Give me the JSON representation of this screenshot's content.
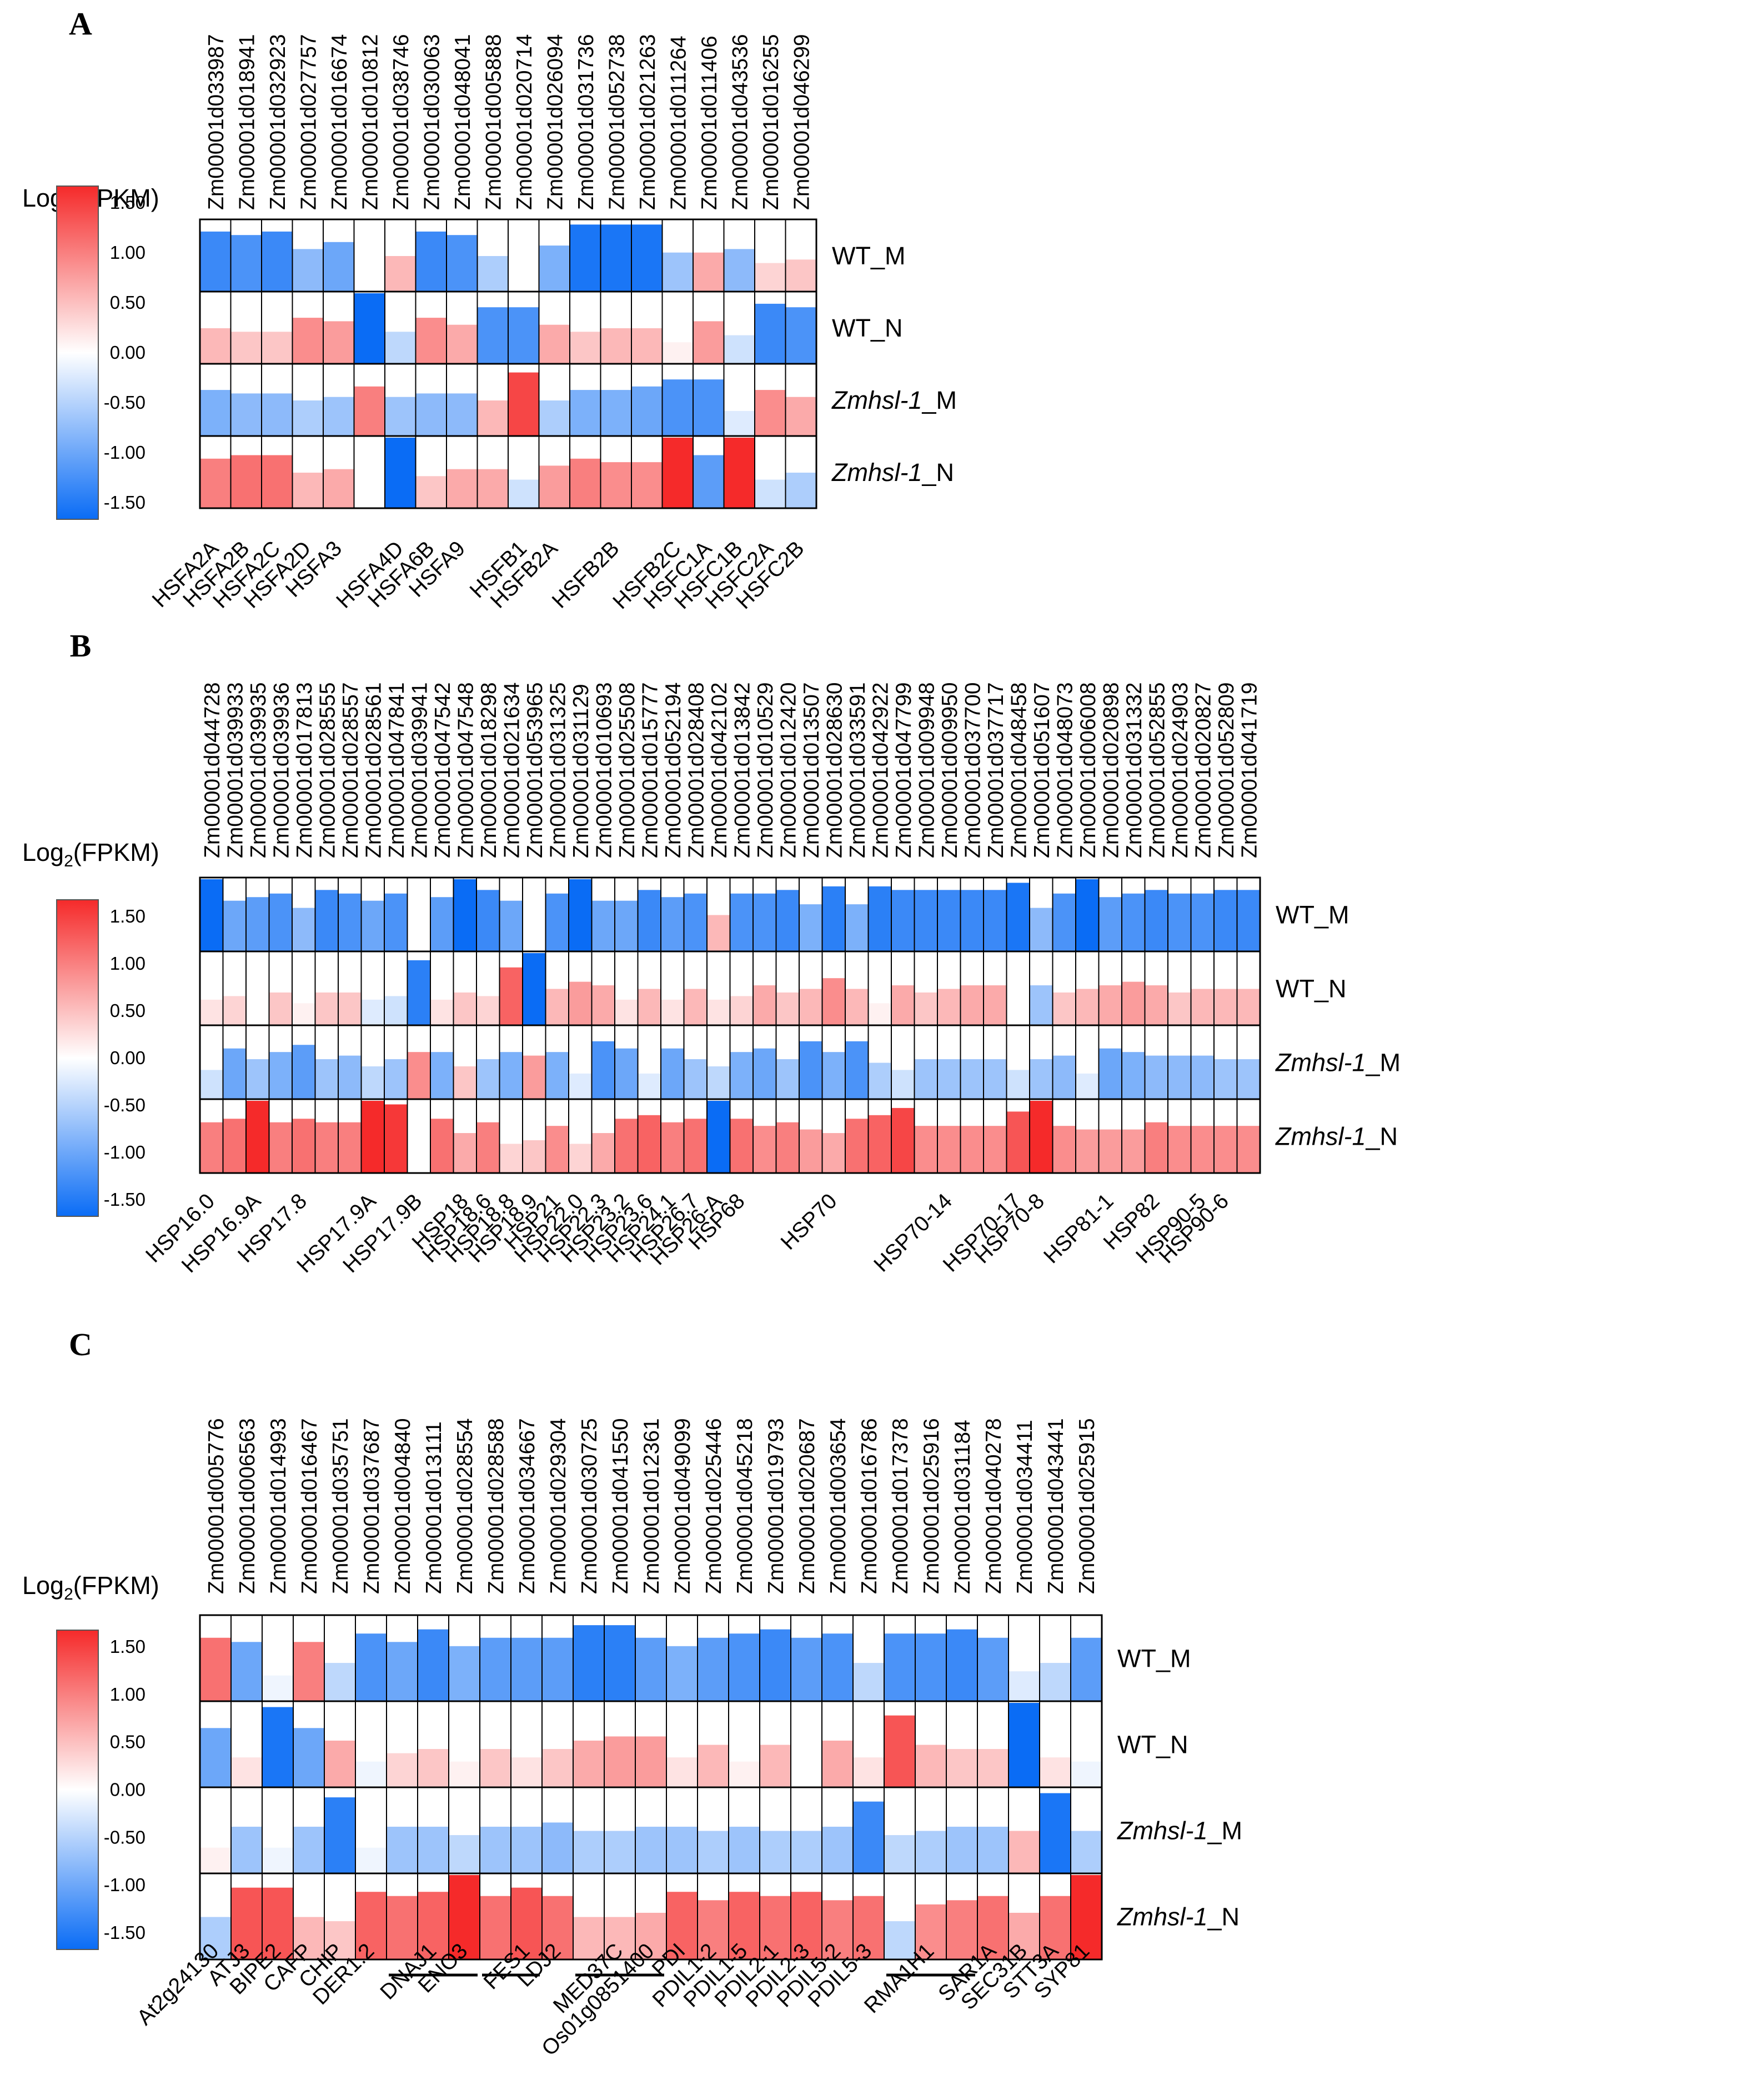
{
  "colors": {
    "low": "#0a6cf5",
    "mid": "#ffffff",
    "high": "#f52a2a"
  },
  "legend": {
    "title": "Log2(FPKM)",
    "title_main": "Log",
    "title_sub": "2",
    "title_rest": "(FPKM)",
    "ticks": [
      "1.50",
      "1.00",
      "0.50",
      "0.00",
      "-0.50",
      "-1.00",
      "-1.50"
    ],
    "min": -1.5,
    "max": 1.5
  },
  "rows": [
    {
      "key": "WT_M",
      "label": "WT_M",
      "prefix": "",
      "italic": "",
      "suffix": ""
    },
    {
      "key": "WT_N",
      "label": "WT_N",
      "prefix": "",
      "italic": "",
      "suffix": ""
    },
    {
      "key": "Zmhsl-1_M",
      "label": "Zmhsl-1_M",
      "prefix": "",
      "italic": "Zmhsl-1",
      "suffix": "_M"
    },
    {
      "key": "Zmhsl-1_N",
      "label": "Zmhsl-1_N",
      "prefix": "",
      "italic": "Zmhsl-1",
      "suffix": "_N"
    }
  ],
  "chart_data": [
    {
      "type": "heatmap",
      "panel": "A",
      "title": "A",
      "value_label": "Log2(FPKM)",
      "row_labels": [
        "WT_M",
        "WT_N",
        "Zmhsl-1_M",
        "Zmhsl-1_N"
      ],
      "gene_ids": [
        "Zm00001d033987",
        "Zm00001d018941",
        "Zm00001d032923",
        "Zm00001d027757",
        "Zm00001d016674",
        "Zm00001d010812",
        "Zm00001d038746",
        "Zm00001d030063",
        "Zm00001d048041",
        "Zm00001d005888",
        "Zm00001d020714",
        "Zm00001d026094",
        "Zm00001d031736",
        "Zm00001d052738",
        "Zm00001d021263",
        "Zm00001d011264",
        "Zm00001d011406",
        "Zm00001d043536",
        "Zm00001d016255",
        "Zm00001d046299"
      ],
      "gene_labels": [
        "HSFA2A",
        "HSFA2B",
        "HSFA2C",
        "HSFA2D",
        "HSFA3",
        "",
        "HSFA4D",
        "HSFA6B",
        "HSFA9",
        "",
        "HSFB1",
        "HSFB2A",
        "",
        "HSFB2B",
        "",
        "HSFB2C",
        "HSFC1A",
        "HSFC1B",
        "HSFC2A",
        "HSFC2B"
      ],
      "gene_groups": [],
      "values": [
        [
          -1.2,
          -1.1,
          -1.2,
          -0.7,
          -0.9,
          0.0,
          0.5,
          -1.2,
          -1.1,
          -0.5,
          0.0,
          -0.8,
          -1.4,
          -1.4,
          -1.4,
          -0.6,
          0.6,
          -0.7,
          0.3,
          0.4
        ],
        [
          0.5,
          0.4,
          0.4,
          0.8,
          0.7,
          -1.5,
          -0.4,
          0.8,
          0.6,
          -1.1,
          -1.1,
          0.6,
          0.4,
          0.5,
          0.5,
          0.1,
          0.7,
          -0.3,
          -1.2,
          -1.1
        ],
        [
          -0.8,
          -0.7,
          -0.7,
          -0.5,
          -0.6,
          0.9,
          -0.6,
          -0.7,
          -0.7,
          0.5,
          1.3,
          -0.5,
          -0.8,
          -0.8,
          -0.9,
          -1.1,
          -1.1,
          -0.2,
          0.8,
          0.6
        ],
        [
          0.9,
          1.0,
          1.0,
          0.5,
          0.6,
          0.0,
          -1.5,
          0.4,
          0.6,
          0.6,
          -0.3,
          0.7,
          0.9,
          0.8,
          0.8,
          1.5,
          -1.0,
          1.6,
          -0.3,
          -0.5
        ]
      ]
    },
    {
      "type": "heatmap",
      "panel": "B",
      "title": "B",
      "value_label": "Log2(FPKM)",
      "row_labels": [
        "WT_M",
        "WT_N",
        "Zmhsl-1_M",
        "Zmhsl-1_N"
      ],
      "gene_ids": [
        "Zm00001d044728",
        "Zm00001d039933",
        "Zm00001d039935",
        "Zm00001d039936",
        "Zm00001d017813",
        "Zm00001d028555",
        "Zm00001d028557",
        "Zm00001d028561",
        "Zm00001d047841",
        "Zm00001d039941",
        "Zm00001d047542",
        "Zm00001d047548",
        "Zm00001d018298",
        "Zm00001d021634",
        "Zm00001d053965",
        "Zm00001d031325",
        "Zm00001d031129",
        "Zm00001d010693",
        "Zm00001d025508",
        "Zm00001d015777",
        "Zm00001d052194",
        "Zm00001d028408",
        "Zm00001d042102",
        "Zm00001d013842",
        "Zm00001d010529",
        "Zm00001d012420",
        "Zm00001d013507",
        "Zm00001d028630",
        "Zm00001d033591",
        "Zm00001d042922",
        "Zm00001d047799",
        "Zm00001d009948",
        "Zm00001d009950",
        "Zm00001d037700",
        "Zm00001d037717",
        "Zm00001d048458",
        "Zm00001d051607",
        "Zm00001d048073",
        "Zm00001d006008",
        "Zm00001d020898",
        "Zm00001d031332",
        "Zm00001d052855",
        "Zm00001d024903",
        "Zm00001d020827",
        "Zm00001d052809",
        "Zm00001d041719"
      ],
      "gene_labels": [
        "HSP16.0",
        "",
        "HSP16.9A",
        "",
        "HSP17.8",
        "",
        "",
        "HSP17.9A",
        "",
        "HSP17.9B",
        "",
        "HSP18",
        "HSP18.6",
        "HSP18.8",
        "HSP18.9",
        "HSP21",
        "HSP22.0",
        "HSP22.3",
        "HSP23.2",
        "HSP23.6",
        "HSP24.1",
        "HSP26.7",
        "HSP26-A",
        "HSP68",
        "",
        "",
        "",
        "HSP70",
        "",
        "",
        "",
        "",
        "HSP70-14",
        "",
        "",
        "HSP70-17",
        "HSP70-8",
        "",
        "",
        "HSP81-1",
        "",
        "HSP82",
        "",
        "HSP90-5",
        "HSP90-6",
        ""
      ],
      "gene_groups": [],
      "values": [
        [
          -1.5,
          -0.9,
          -1.0,
          -1.1,
          -0.7,
          -1.2,
          -1.1,
          -0.9,
          -1.1,
          0.0,
          -1.0,
          -1.7,
          -1.2,
          -0.9,
          0.0,
          -1.1,
          -1.8,
          -0.9,
          -0.9,
          -1.2,
          -1.0,
          -1.1,
          0.5,
          -1.1,
          -1.1,
          -1.2,
          -0.8,
          -1.3,
          -0.8,
          -1.3,
          -1.2,
          -1.2,
          -1.2,
          -1.2,
          -1.2,
          -1.4,
          -0.7,
          -1.1,
          -1.6,
          -1.0,
          -1.1,
          -1.2,
          -1.1,
          -1.1,
          -1.2,
          -1.2
        ],
        [
          0.2,
          0.3,
          0.0,
          0.4,
          0.1,
          0.4,
          0.4,
          -0.2,
          -0.3,
          -1.3,
          0.2,
          0.4,
          0.3,
          1.1,
          -1.5,
          0.5,
          0.7,
          0.6,
          0.2,
          0.5,
          0.2,
          0.5,
          0.2,
          0.3,
          0.6,
          0.4,
          0.5,
          0.8,
          0.5,
          0.1,
          0.6,
          0.4,
          0.5,
          0.6,
          0.6,
          0.0,
          -0.6,
          0.4,
          0.5,
          0.6,
          0.7,
          0.6,
          0.4,
          0.5,
          0.5,
          0.5
        ],
        [
          -0.3,
          -0.9,
          -0.6,
          -0.8,
          -1.0,
          -0.6,
          -0.7,
          -0.4,
          -0.6,
          0.8,
          -0.8,
          0.4,
          -0.6,
          -0.8,
          0.7,
          -0.8,
          -0.2,
          -1.1,
          -0.9,
          -0.2,
          -0.9,
          -0.6,
          -0.4,
          -0.8,
          -0.9,
          -0.6,
          -1.1,
          -0.8,
          -1.1,
          -0.5,
          -0.3,
          -0.6,
          -0.6,
          -0.6,
          -0.6,
          -0.3,
          -0.6,
          -0.7,
          -0.2,
          -0.9,
          -0.8,
          -0.7,
          -0.7,
          -0.7,
          -0.6,
          -0.6
        ],
        [
          0.9,
          1.0,
          1.5,
          0.9,
          1.0,
          0.9,
          0.9,
          1.6,
          1.4,
          0.0,
          1.0,
          0.6,
          0.9,
          0.3,
          0.4,
          0.8,
          0.3,
          0.6,
          1.0,
          1.1,
          0.9,
          1.0,
          -1.5,
          1.0,
          0.8,
          0.9,
          0.7,
          0.6,
          1.0,
          1.1,
          1.3,
          0.8,
          0.8,
          0.8,
          0.8,
          1.2,
          1.7,
          0.8,
          0.7,
          0.7,
          0.7,
          0.9,
          0.8,
          0.8,
          0.8,
          0.8
        ]
      ]
    },
    {
      "type": "heatmap",
      "panel": "C",
      "title": "C",
      "value_label": "Log2(FPKM)",
      "row_labels": [
        "WT_M",
        "WT_N",
        "Zmhsl-1_M",
        "Zmhsl-1_N"
      ],
      "gene_ids": [
        "Zm00001d005776",
        "Zm00001d006563",
        "Zm00001d014993",
        "Zm00001d016467",
        "Zm00001d035751",
        "Zm00001d037687",
        "Zm00001d004840",
        "Zm00001d013111",
        "Zm00001d028554",
        "Zm00001d028588",
        "Zm00001d034667",
        "Zm00001d029304",
        "Zm00001d030725",
        "Zm00001d041550",
        "Zm00001d012361",
        "Zm00001d049099",
        "Zm00001d025446",
        "Zm00001d045218",
        "Zm00001d019793",
        "Zm00001d020687",
        "Zm00001d003654",
        "Zm00001d016786",
        "Zm00001d017378",
        "Zm00001d025916",
        "Zm00001d031184",
        "Zm00001d040278",
        "Zm00001d034411",
        "Zm00001d043441",
        "Zm00001d025915"
      ],
      "gene_labels": [
        "At2g24130",
        "ATJ3",
        "BIPE2",
        "CAFP",
        "CHIP",
        "DER1.2",
        "",
        "DNAJ1",
        "ENO3",
        "",
        "FES1",
        "LDJ2",
        "",
        "MED37C",
        "Os01g0851400",
        "PDI",
        "PDIL1-2",
        "PDIL1-5",
        "PDIL2-1",
        "PDIL2-3",
        "PDIL5-2",
        "PDIL5-3",
        "",
        "RMA1H1",
        "",
        "SAR1A",
        "SEC31B",
        "STT3A",
        "SYP81"
      ],
      "gene_groups": [
        {
          "start": 6,
          "end": 8
        },
        {
          "start": 9,
          "end": 10
        },
        {
          "start": 12,
          "end": 14
        },
        {
          "start": 22,
          "end": 24
        }
      ],
      "values": [
        [
          1.0,
          -0.9,
          -0.1,
          0.9,
          -0.4,
          -1.1,
          -0.9,
          -1.2,
          -0.8,
          -1.0,
          -1.0,
          -1.0,
          -1.3,
          -1.3,
          -1.0,
          -0.8,
          -1.0,
          -1.1,
          -1.2,
          -1.0,
          -1.1,
          -0.4,
          -1.1,
          -1.1,
          -1.2,
          -1.0,
          -0.2,
          -0.4,
          -1.0
        ],
        [
          -0.9,
          0.2,
          -1.4,
          -0.9,
          0.6,
          -0.1,
          0.3,
          0.4,
          0.1,
          0.4,
          0.2,
          0.4,
          0.6,
          0.7,
          0.7,
          0.2,
          0.5,
          0.1,
          0.5,
          0.0,
          0.6,
          0.2,
          1.2,
          0.5,
          0.4,
          0.4,
          -1.6,
          0.2,
          -0.1
        ],
        [
          0.1,
          -0.6,
          -0.1,
          -0.6,
          -1.3,
          -0.1,
          -0.6,
          -0.6,
          -0.4,
          -0.6,
          -0.6,
          -0.7,
          -0.5,
          -0.5,
          -0.6,
          -0.6,
          -0.5,
          -0.6,
          -0.5,
          -0.5,
          -0.6,
          -1.2,
          -0.4,
          -0.5,
          -0.6,
          -0.6,
          0.5,
          -1.4,
          -0.5
        ],
        [
          -0.5,
          1.2,
          1.2,
          0.5,
          0.4,
          1.1,
          1.0,
          1.1,
          1.5,
          1.0,
          1.2,
          1.0,
          0.5,
          0.5,
          0.6,
          1.1,
          0.9,
          1.1,
          1.0,
          1.1,
          0.9,
          1.0,
          -0.4,
          0.8,
          0.9,
          1.0,
          0.6,
          1.0,
          1.5
        ]
      ]
    }
  ]
}
